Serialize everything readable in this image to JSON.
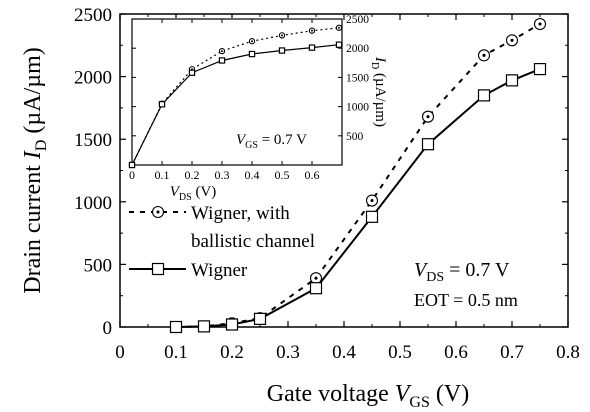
{
  "chart_data": [
    {
      "type": "line",
      "title": "",
      "xlabel": {
        "main": "Gate voltage ",
        "var": "V",
        "sub": "GS",
        "unit": " (V)"
      },
      "ylabel": {
        "main": "Drain current ",
        "var": "I",
        "sub": "D",
        "unit": " (µA/µm)"
      },
      "xlim": [
        0,
        0.8
      ],
      "ylim": [
        0,
        2500
      ],
      "xticks": [
        "0",
        "0.1",
        "0.2",
        "0.3",
        "0.4",
        "0.5",
        "0.6",
        "0.7",
        "0.8"
      ],
      "yticks": [
        "0",
        "500",
        "1000",
        "1500",
        "2000",
        "2500"
      ],
      "series": [
        {
          "name_lines": [
            "Wigner, with",
            "ballistic channel"
          ],
          "style": "dotted",
          "marker": "circle-dot",
          "x": [
            0.1,
            0.15,
            0.2,
            0.25,
            0.35,
            0.45,
            0.55,
            0.65,
            0.7,
            0.75
          ],
          "y": [
            0,
            5,
            30,
            70,
            390,
            1010,
            1680,
            2170,
            2290,
            2420
          ]
        },
        {
          "name_lines": [
            "Wigner"
          ],
          "style": "solid",
          "marker": "square",
          "x": [
            0.1,
            0.15,
            0.2,
            0.25,
            0.35,
            0.45,
            0.55,
            0.65,
            0.7,
            0.75
          ],
          "y": [
            0,
            5,
            20,
            65,
            310,
            880,
            1460,
            1850,
            1970,
            2060
          ]
        }
      ],
      "annotations": {
        "vds": {
          "var": "V",
          "sub": "DS",
          "rest": " = 0.7 V"
        },
        "eot": "EOT = 0.5 nm"
      }
    },
    {
      "type": "line",
      "role": "inset",
      "xlabel": {
        "var": "V",
        "sub": "DS",
        "unit": " (V)"
      },
      "ylabel": {
        "var": "I",
        "sub": "D",
        "unit": " (µA/µm)"
      },
      "xlim": [
        0,
        0.7
      ],
      "ylim": [
        0,
        2500
      ],
      "xticks": [
        "0",
        "0.1",
        "0.2",
        "0.3",
        "0.4",
        "0.5",
        "0.6"
      ],
      "yticks": [
        "500",
        "1000",
        "1500",
        "2000",
        "2500"
      ],
      "series": [
        {
          "style": "dotted",
          "marker": "circle-dot",
          "x": [
            0,
            0.1,
            0.2,
            0.3,
            0.4,
            0.5,
            0.6,
            0.69
          ],
          "y": [
            0,
            1050,
            1640,
            1950,
            2120,
            2220,
            2300,
            2350
          ]
        },
        {
          "style": "solid",
          "marker": "square",
          "x": [
            0,
            0.1,
            0.2,
            0.3,
            0.4,
            0.5,
            0.6,
            0.69
          ],
          "y": [
            0,
            1040,
            1580,
            1790,
            1900,
            1960,
            2010,
            2060
          ]
        }
      ],
      "annotations": {
        "vgs": {
          "var": "V",
          "sub": "GS",
          "rest": " = 0.7 V"
        }
      }
    }
  ]
}
